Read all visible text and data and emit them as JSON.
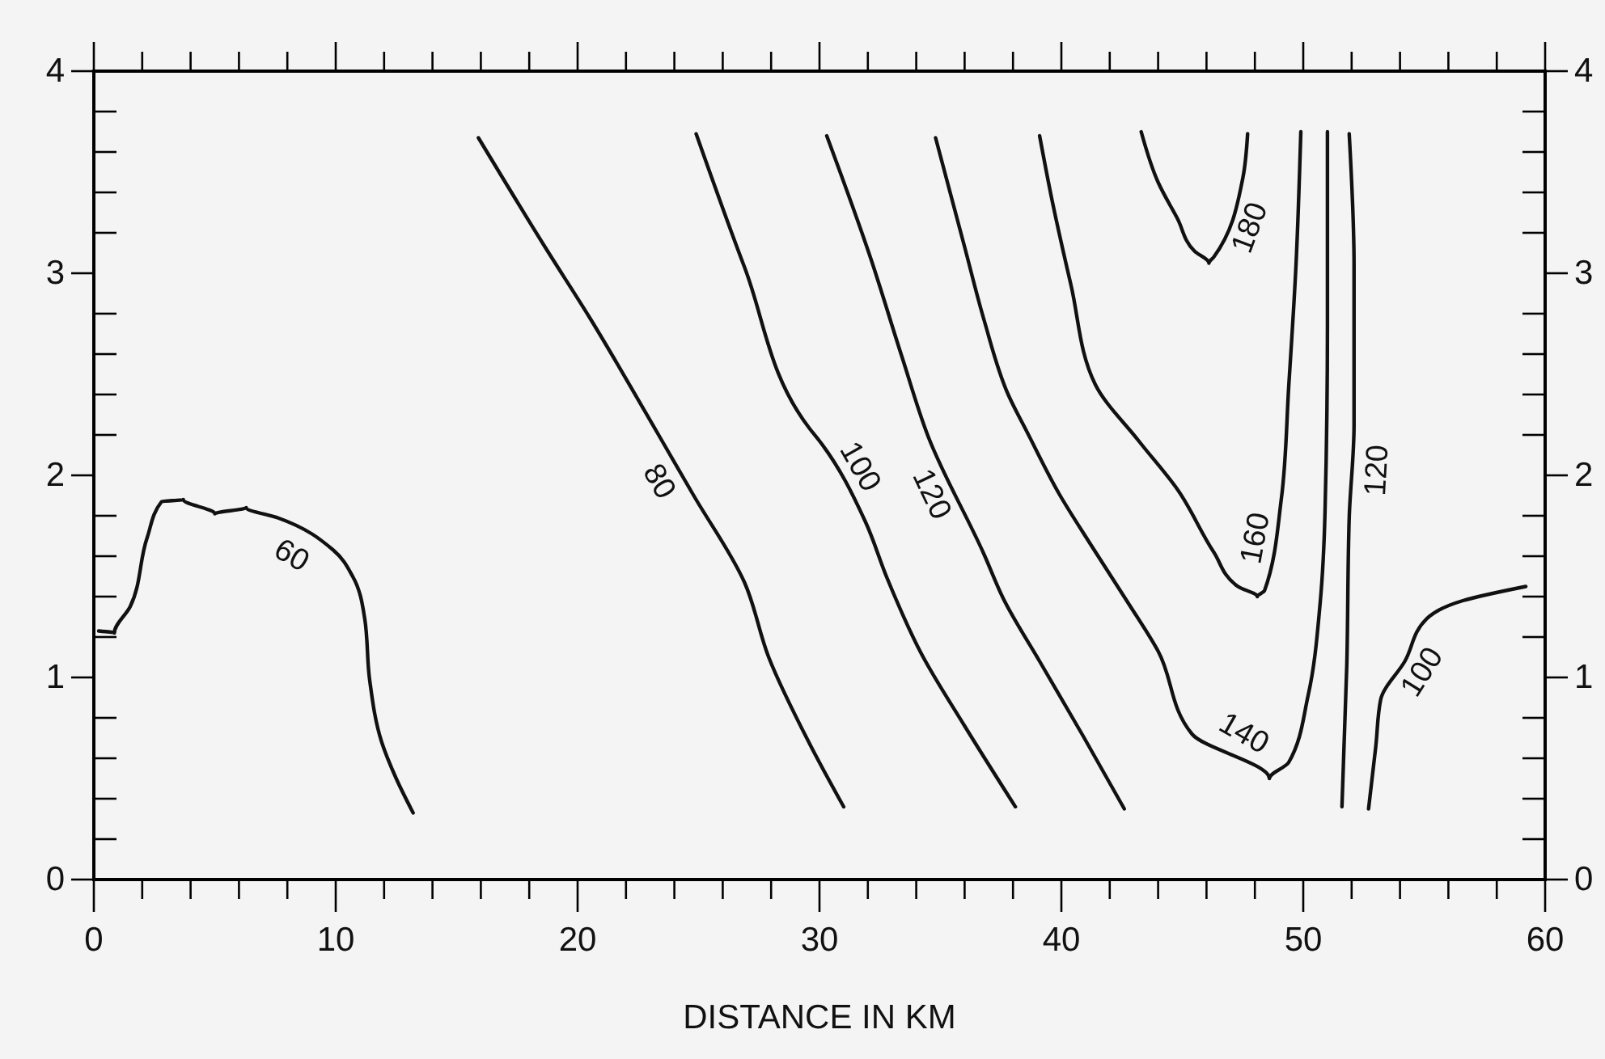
{
  "chart_data": {
    "type": "line",
    "xlabel": "DISTANCE IN KM",
    "xlim": [
      0,
      60
    ],
    "ylim": [
      0,
      4
    ],
    "y2lim": [
      0,
      4
    ],
    "xticks": [
      0,
      {
        "value": 2,
        "label": null
      },
      {
        "value": 4,
        "label": null
      },
      {
        "value": 6,
        "label": null
      },
      {
        "value": 8,
        "label": null
      },
      10,
      {
        "value": 12,
        "label": null
      },
      {
        "value": 14,
        "label": null
      },
      {
        "value": 16,
        "label": null
      },
      {
        "value": 18,
        "label": null
      },
      20,
      {
        "value": 22,
        "label": null
      },
      {
        "value": 24,
        "label": null
      },
      {
        "value": 26,
        "label": null
      },
      {
        "value": 28,
        "label": null
      },
      30,
      {
        "value": 32,
        "label": null
      },
      {
        "value": 34,
        "label": null
      },
      {
        "value": 36,
        "label": null
      },
      {
        "value": 38,
        "label": null
      },
      40,
      {
        "value": 42,
        "label": null
      },
      {
        "value": 44,
        "label": null
      },
      {
        "value": 46,
        "label": null
      },
      {
        "value": 48,
        "label": null
      },
      50,
      {
        "value": 52,
        "label": null
      },
      {
        "value": 54,
        "label": null
      },
      {
        "value": 56,
        "label": null
      },
      {
        "value": 58,
        "label": null
      },
      60
    ],
    "yticks": [
      0,
      {
        "value": 0.2,
        "label": null
      },
      {
        "value": 0.4,
        "label": null
      },
      {
        "value": 0.6,
        "label": null
      },
      {
        "value": 0.8,
        "label": null
      },
      1,
      {
        "value": 1.2,
        "label": null
      },
      {
        "value": 1.4,
        "label": null
      },
      {
        "value": 1.6,
        "label": null
      },
      {
        "value": 1.8,
        "label": null
      },
      2,
      {
        "value": 2.2,
        "label": null
      },
      {
        "value": 2.4,
        "label": null
      },
      {
        "value": 2.6,
        "label": null
      },
      {
        "value": 2.8,
        "label": null
      },
      3,
      {
        "value": 3.2,
        "label": null
      },
      {
        "value": 3.4,
        "label": null
      },
      {
        "value": 3.6,
        "label": null
      },
      {
        "value": 3.8,
        "label": null
      },
      4
    ],
    "y2ticks": [
      0,
      {
        "value": 0.2,
        "label": null
      },
      {
        "value": 0.4,
        "label": null
      },
      {
        "value": 0.6,
        "label": null
      },
      {
        "value": 0.8,
        "label": null
      },
      1,
      {
        "value": 1.2,
        "label": null
      },
      {
        "value": 1.4,
        "label": null
      },
      {
        "value": 1.6,
        "label": null
      },
      {
        "value": 1.8,
        "label": null
      },
      2,
      {
        "value": 2.2,
        "label": null
      },
      {
        "value": 2.4,
        "label": null
      },
      {
        "value": 2.6,
        "label": null
      },
      {
        "value": 2.8,
        "label": null
      },
      3,
      {
        "value": 3.2,
        "label": null
      },
      {
        "value": 3.4,
        "label": null
      },
      {
        "value": 3.6,
        "label": null
      },
      {
        "value": 3.8,
        "label": null
      },
      4
    ],
    "series": [
      {
        "color": "#111111",
        "x": [
          0.2,
          0.85,
          1.5,
          2.2,
          2.8,
          3.7,
          5.0,
          6.3,
          7.6,
          9.9,
          10.7,
          11.2,
          11.4,
          11.9,
          12.5,
          13.2
        ],
        "values": [
          1.23,
          1.22,
          1.35,
          1.69,
          1.87,
          1.88,
          1.81,
          1.84,
          1.79,
          1.63,
          1.5,
          1.29,
          0.99,
          0.68,
          0.5,
          0.33
        ]
      },
      {
        "color": "#111111",
        "x": [
          15.9,
          18.6,
          20.5,
          23.3,
          24.8,
          26.9,
          27.9,
          29.6,
          31.0
        ],
        "values": [
          3.67,
          3.14,
          2.78,
          2.21,
          1.9,
          1.47,
          1.1,
          0.67,
          0.36
        ]
      },
      {
        "color": "#111111",
        "x": [
          24.9,
          26.9,
          29.6,
          30.0,
          31.9,
          32.8,
          34.2,
          36.0,
          38.1
        ],
        "values": [
          3.69,
          3.03,
          2.23,
          2.17,
          1.77,
          1.49,
          1.12,
          0.76,
          0.36
        ]
      },
      {
        "color": "#111111",
        "x": [
          30.3,
          32.1,
          33.4,
          34.5,
          36.8,
          37.6,
          39.1,
          40.9,
          42.6
        ],
        "values": [
          3.68,
          3.08,
          2.59,
          2.19,
          1.61,
          1.39,
          1.08,
          0.71,
          0.35
        ]
      },
      {
        "color": "#111111",
        "x": [
          34.8,
          36.0,
          36.8,
          37.8,
          38.6,
          39.9,
          41.2,
          42.7,
          44.0,
          45.4,
          48.6,
          49.4,
          50.2,
          50.7,
          50.9,
          51.0,
          51.0
        ],
        "values": [
          3.67,
          3.13,
          2.77,
          2.4,
          2.21,
          1.91,
          1.66,
          1.38,
          1.13,
          0.72,
          0.5,
          0.58,
          0.91,
          1.37,
          1.82,
          2.74,
          3.7
        ]
      },
      {
        "color": "#111111",
        "x": [
          39.1,
          39.6,
          40.4,
          41.4,
          43.2,
          44.8,
          46.3,
          47.3,
          48.1,
          48.4,
          49.1,
          49.4,
          49.7,
          49.9
        ],
        "values": [
          3.68,
          3.37,
          2.94,
          2.45,
          2.17,
          1.93,
          1.62,
          1.45,
          1.4,
          1.43,
          1.89,
          2.44,
          3.04,
          3.7
        ]
      },
      {
        "color": "#111111",
        "x": [
          43.3,
          44.0,
          44.8,
          45.5,
          46.1,
          46.3,
          47.5,
          47.7
        ],
        "values": [
          3.7,
          3.45,
          3.27,
          3.11,
          3.05,
          3.08,
          3.47,
          3.69
        ]
      },
      {
        "color": "#111111",
        "x": [
          51.9,
          52.1,
          52.1,
          51.9,
          51.8,
          51.6
        ],
        "values": [
          3.69,
          3.04,
          2.25,
          1.79,
          1.06,
          0.36
        ]
      },
      {
        "color": "#111111",
        "x": [
          52.7,
          53.0,
          53.2,
          54.2,
          55.1,
          56.6,
          59.2
        ],
        "values": [
          0.35,
          0.66,
          0.89,
          1.08,
          1.29,
          1.38,
          1.45
        ]
      }
    ],
    "annotations": [
      {
        "text": "60",
        "x": 8.6,
        "y": 1.69
      },
      {
        "text": "80",
        "x": 24.1,
        "y": 2.02
      },
      {
        "text": "100",
        "x": 30.9,
        "y": 1.99
      },
      {
        "text": "120",
        "x": 35.4,
        "y": 1.95
      },
      {
        "text": "140",
        "x": 47.1,
        "y": 0.63
      },
      {
        "text": "160",
        "x": 48.9,
        "y": 1.67
      },
      {
        "text": "180",
        "x": 47.0,
        "y": 3.26
      },
      {
        "text": "120",
        "x": 52.2,
        "y": 2.03
      },
      {
        "text": "100",
        "x": 54.2,
        "y": 1.08
      }
    ]
  }
}
